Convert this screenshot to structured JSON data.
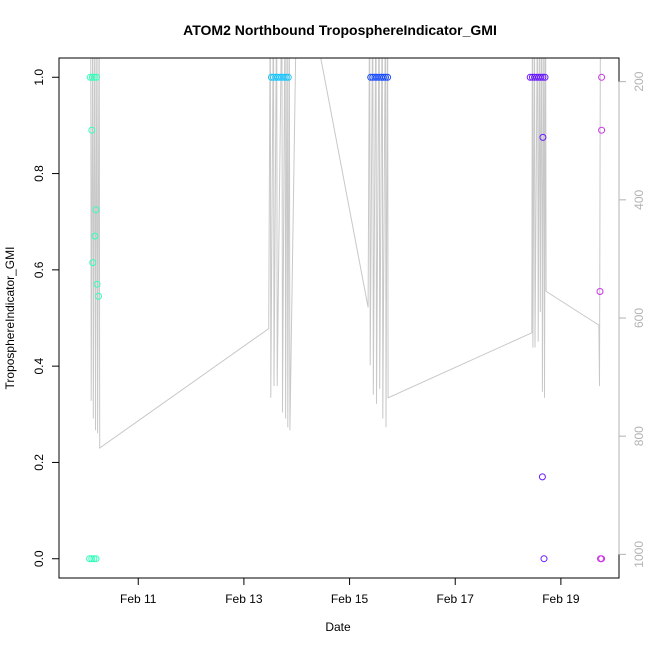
{
  "chart_data": {
    "type": "scatter",
    "title": "ATOM2 Northbound TroposphereIndicator_GMI",
    "xlabel": "Date",
    "ylabel": "TroposphereIndicator_GMI",
    "x_ticks": [
      "Feb 11",
      "Feb 13",
      "Feb 15",
      "Feb 17",
      "Feb 19"
    ],
    "x_tick_days": [
      11,
      13,
      15,
      17,
      19
    ],
    "xlim_days": [
      9.5,
      20.1
    ],
    "ylim": [
      -0.04,
      1.04
    ],
    "y_ticks": [
      "0.0",
      "0.2",
      "0.4",
      "0.6",
      "0.8",
      "1.0"
    ],
    "y_tick_values": [
      0.0,
      0.2,
      0.4,
      0.6,
      0.8,
      1.0
    ],
    "right_axis": {
      "ylim": [
        1040,
        160
      ],
      "ticks": [
        "200",
        "400",
        "600",
        "800",
        "1000"
      ],
      "tick_values": [
        200,
        400,
        600,
        800,
        1000
      ],
      "color": "#b3b3b3"
    },
    "grid": false,
    "legend": "none",
    "series": [
      {
        "color": "#33ffbb",
        "points": [
          [
            10.08,
            0.0
          ],
          [
            10.12,
            0.0
          ],
          [
            10.16,
            0.0
          ],
          [
            10.2,
            0.0
          ],
          [
            10.09,
            1.0
          ],
          [
            10.13,
            1.0
          ],
          [
            10.17,
            1.0
          ],
          [
            10.21,
            1.0
          ],
          [
            10.12,
            0.89
          ],
          [
            10.2,
            0.725
          ],
          [
            10.18,
            0.67
          ],
          [
            10.14,
            0.615
          ],
          [
            10.22,
            0.57
          ],
          [
            10.25,
            0.545
          ]
        ]
      },
      {
        "color": "#1ac6ff",
        "points": [
          [
            13.52,
            1.0
          ],
          [
            13.56,
            1.0
          ],
          [
            13.6,
            1.0
          ],
          [
            13.64,
            1.0
          ],
          [
            13.68,
            1.0
          ],
          [
            13.72,
            1.0
          ],
          [
            13.76,
            1.0
          ],
          [
            13.8,
            1.0
          ],
          [
            13.84,
            1.0
          ]
        ]
      },
      {
        "color": "#1a4dff",
        "points": [
          [
            15.4,
            1.0
          ],
          [
            15.44,
            1.0
          ],
          [
            15.48,
            1.0
          ],
          [
            15.52,
            1.0
          ],
          [
            15.56,
            1.0
          ],
          [
            15.6,
            1.0
          ],
          [
            15.64,
            1.0
          ],
          [
            15.68,
            1.0
          ],
          [
            15.72,
            1.0
          ]
        ]
      },
      {
        "color": "#6a1aff",
        "points": [
          [
            18.42,
            1.0
          ],
          [
            18.46,
            1.0
          ],
          [
            18.5,
            1.0
          ],
          [
            18.54,
            1.0
          ],
          [
            18.58,
            1.0
          ],
          [
            18.62,
            1.0
          ],
          [
            18.66,
            1.0
          ],
          [
            18.7,
            1.0
          ],
          [
            18.66,
            0.875
          ],
          [
            18.65,
            0.17
          ],
          [
            18.68,
            0.0
          ]
        ]
      },
      {
        "color": "#cc33e6",
        "points": [
          [
            19.77,
            1.0
          ],
          [
            19.77,
            0.89
          ],
          [
            19.74,
            0.555
          ],
          [
            19.75,
            0.0
          ],
          [
            19.77,
            0.0
          ]
        ]
      }
    ],
    "pressure_trace": {
      "color": "#c8c8c8",
      "points": [
        [
          10.1,
          40
        ],
        [
          10.11,
          740
        ],
        [
          10.14,
          40
        ],
        [
          10.15,
          770
        ],
        [
          10.18,
          40
        ],
        [
          10.19,
          790
        ],
        [
          10.22,
          40
        ],
        [
          10.23,
          795
        ],
        [
          10.26,
          40
        ],
        [
          10.27,
          820
        ],
        [
          13.47,
          618
        ],
        [
          13.5,
          40
        ],
        [
          13.51,
          735
        ],
        [
          13.56,
          40
        ],
        [
          13.57,
          715
        ],
        [
          13.62,
          40
        ],
        [
          13.63,
          715
        ],
        [
          13.72,
          40
        ],
        [
          13.73,
          760
        ],
        [
          13.78,
          40
        ],
        [
          13.79,
          770
        ],
        [
          13.82,
          40
        ],
        [
          13.83,
          785
        ],
        [
          13.86,
          40
        ],
        [
          13.87,
          790
        ],
        [
          14.0,
          40
        ],
        [
          14.2,
          40
        ],
        [
          15.35,
          582
        ],
        [
          15.38,
          40
        ],
        [
          15.39,
          680
        ],
        [
          15.44,
          40
        ],
        [
          15.45,
          730
        ],
        [
          15.5,
          40
        ],
        [
          15.51,
          745
        ],
        [
          15.56,
          40
        ],
        [
          15.57,
          720
        ],
        [
          15.62,
          40
        ],
        [
          15.63,
          770
        ],
        [
          15.68,
          40
        ],
        [
          15.69,
          785
        ],
        [
          15.72,
          40
        ],
        [
          15.73,
          735
        ],
        [
          18.45,
          625
        ],
        [
          18.46,
          40
        ],
        [
          18.47,
          650
        ],
        [
          18.5,
          40
        ],
        [
          18.51,
          650
        ],
        [
          18.56,
          40
        ],
        [
          18.57,
          640
        ],
        [
          18.6,
          40
        ],
        [
          18.61,
          590
        ],
        [
          18.64,
          40
        ],
        [
          18.65,
          725
        ],
        [
          18.68,
          40
        ],
        [
          18.69,
          735
        ],
        [
          18.71,
          40
        ],
        [
          18.72,
          555
        ],
        [
          19.72,
          612
        ],
        [
          19.73,
          715
        ],
        [
          19.75,
          40
        ]
      ]
    }
  }
}
